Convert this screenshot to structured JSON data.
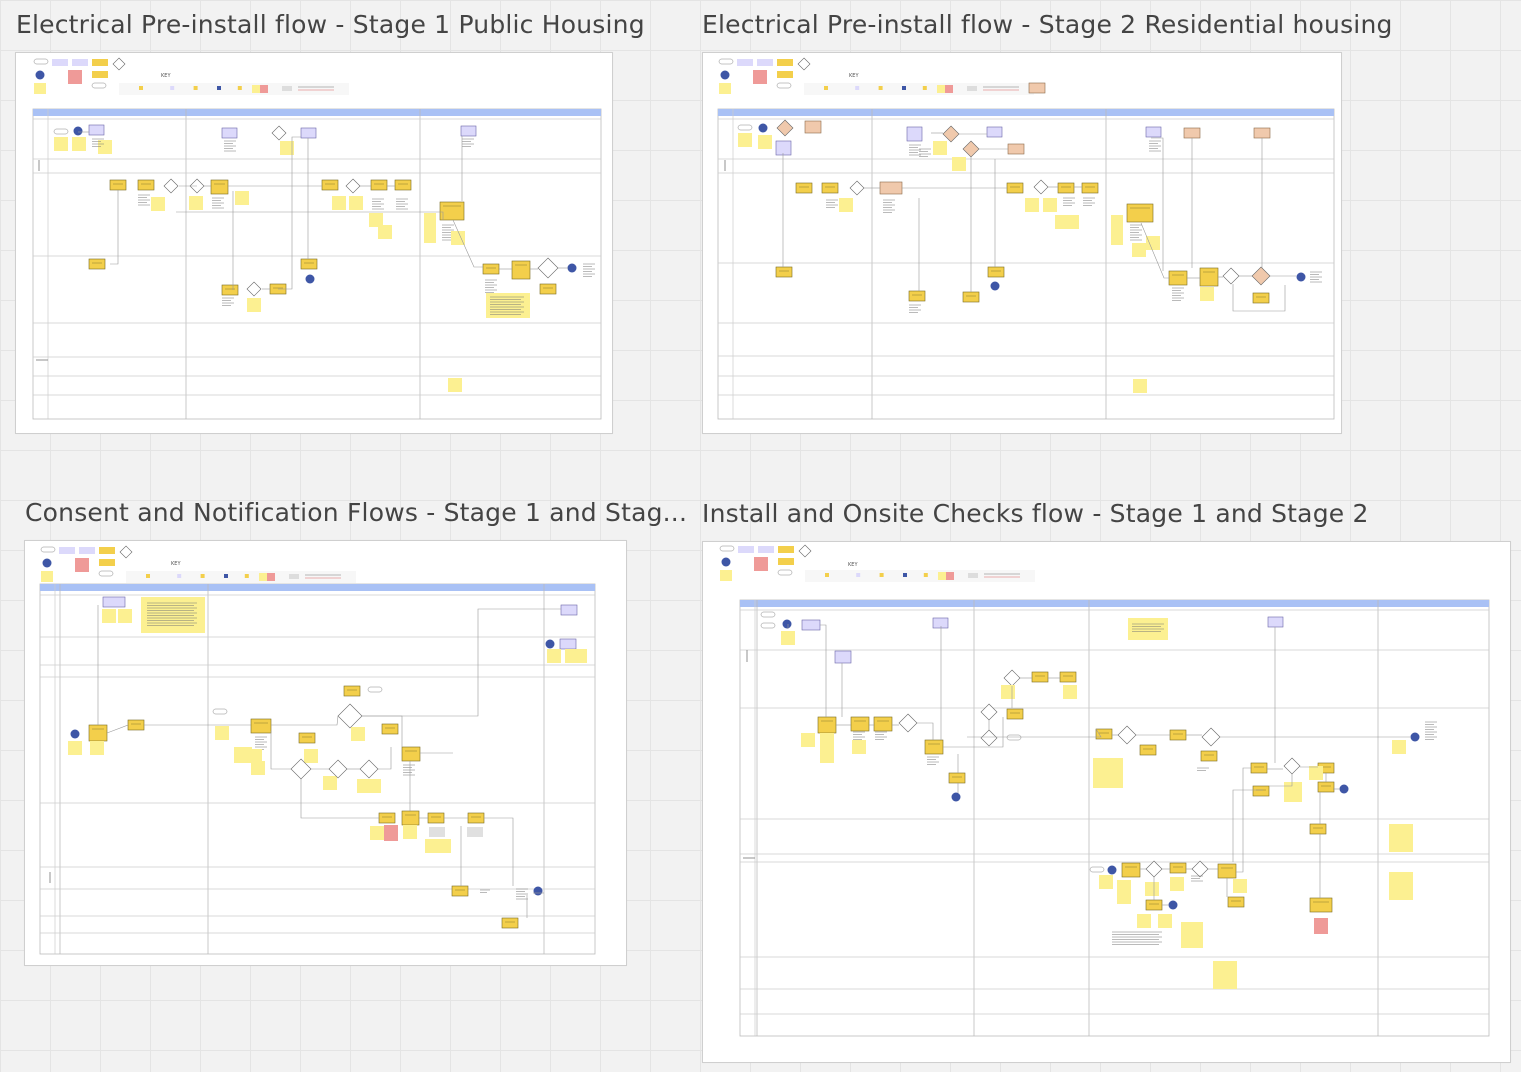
{
  "canvas": {
    "frames": [
      {
        "id": "f1",
        "title": "Electrical Pre-install flow - Stage 1 Public Housing",
        "key_label": "KEY"
      },
      {
        "id": "f2",
        "title": "Electrical Pre-install flow - Stage 2 Residential housing",
        "key_label": "KEY"
      },
      {
        "id": "f3",
        "title": "Consent and Notification Flows - Stage 1 and Stag...",
        "key_label": "KEY"
      },
      {
        "id": "f4",
        "title": "Install and Onsite Checks flow - Stage 1 and Stage 2",
        "key_label": "KEY"
      }
    ]
  },
  "colors": {
    "canvas_bg": "#f2f2f2",
    "frame_bg": "#ffffff",
    "lane_header": "#a9c1f5",
    "process_box": "#f3cf4b",
    "sticky_note": "#fcf091",
    "decision": "#ffffff",
    "system_box": "#dcd9fb",
    "external_box": "#f0c9ac",
    "terminal": "#3e56a6",
    "alert": "#ef9a98",
    "line": "#9a9a9a"
  }
}
